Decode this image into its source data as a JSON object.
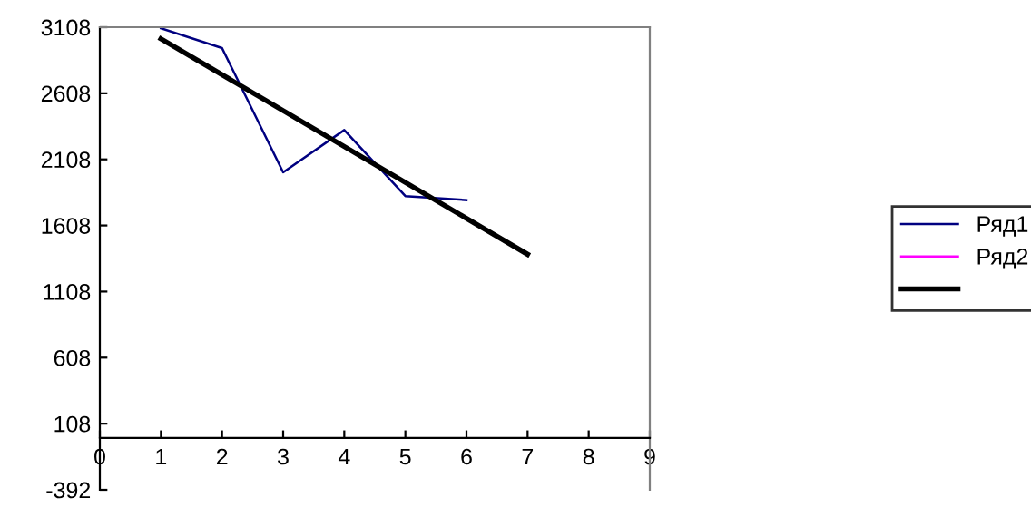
{
  "chart_data": {
    "type": "line",
    "x": [
      1,
      2,
      3,
      4,
      5,
      6
    ],
    "series": [
      {
        "name": "Ряд1",
        "color": "#000080",
        "values": [
          3100,
          2950,
          2010,
          2330,
          1830,
          1800
        ]
      },
      {
        "name": "Ряд2",
        "color": "#ff00ff",
        "values": [
          null,
          null,
          null,
          null,
          null,
          null
        ]
      },
      {
        "type": "line",
        "color": "#000000",
        "x": [
          1,
          7
        ],
        "values": [
          3020,
          1390
        ]
      }
    ],
    "xlim": [
      0,
      9
    ],
    "xticks": [
      0,
      1,
      2,
      3,
      4,
      5,
      6,
      7,
      8,
      9
    ],
    "ylim": [
      -392,
      3108
    ],
    "yticks": [
      -392,
      108,
      608,
      1108,
      1608,
      2108,
      2608,
      3108
    ],
    "grid": false,
    "legend": "right",
    "marker": "none",
    "line_style": "solid"
  }
}
